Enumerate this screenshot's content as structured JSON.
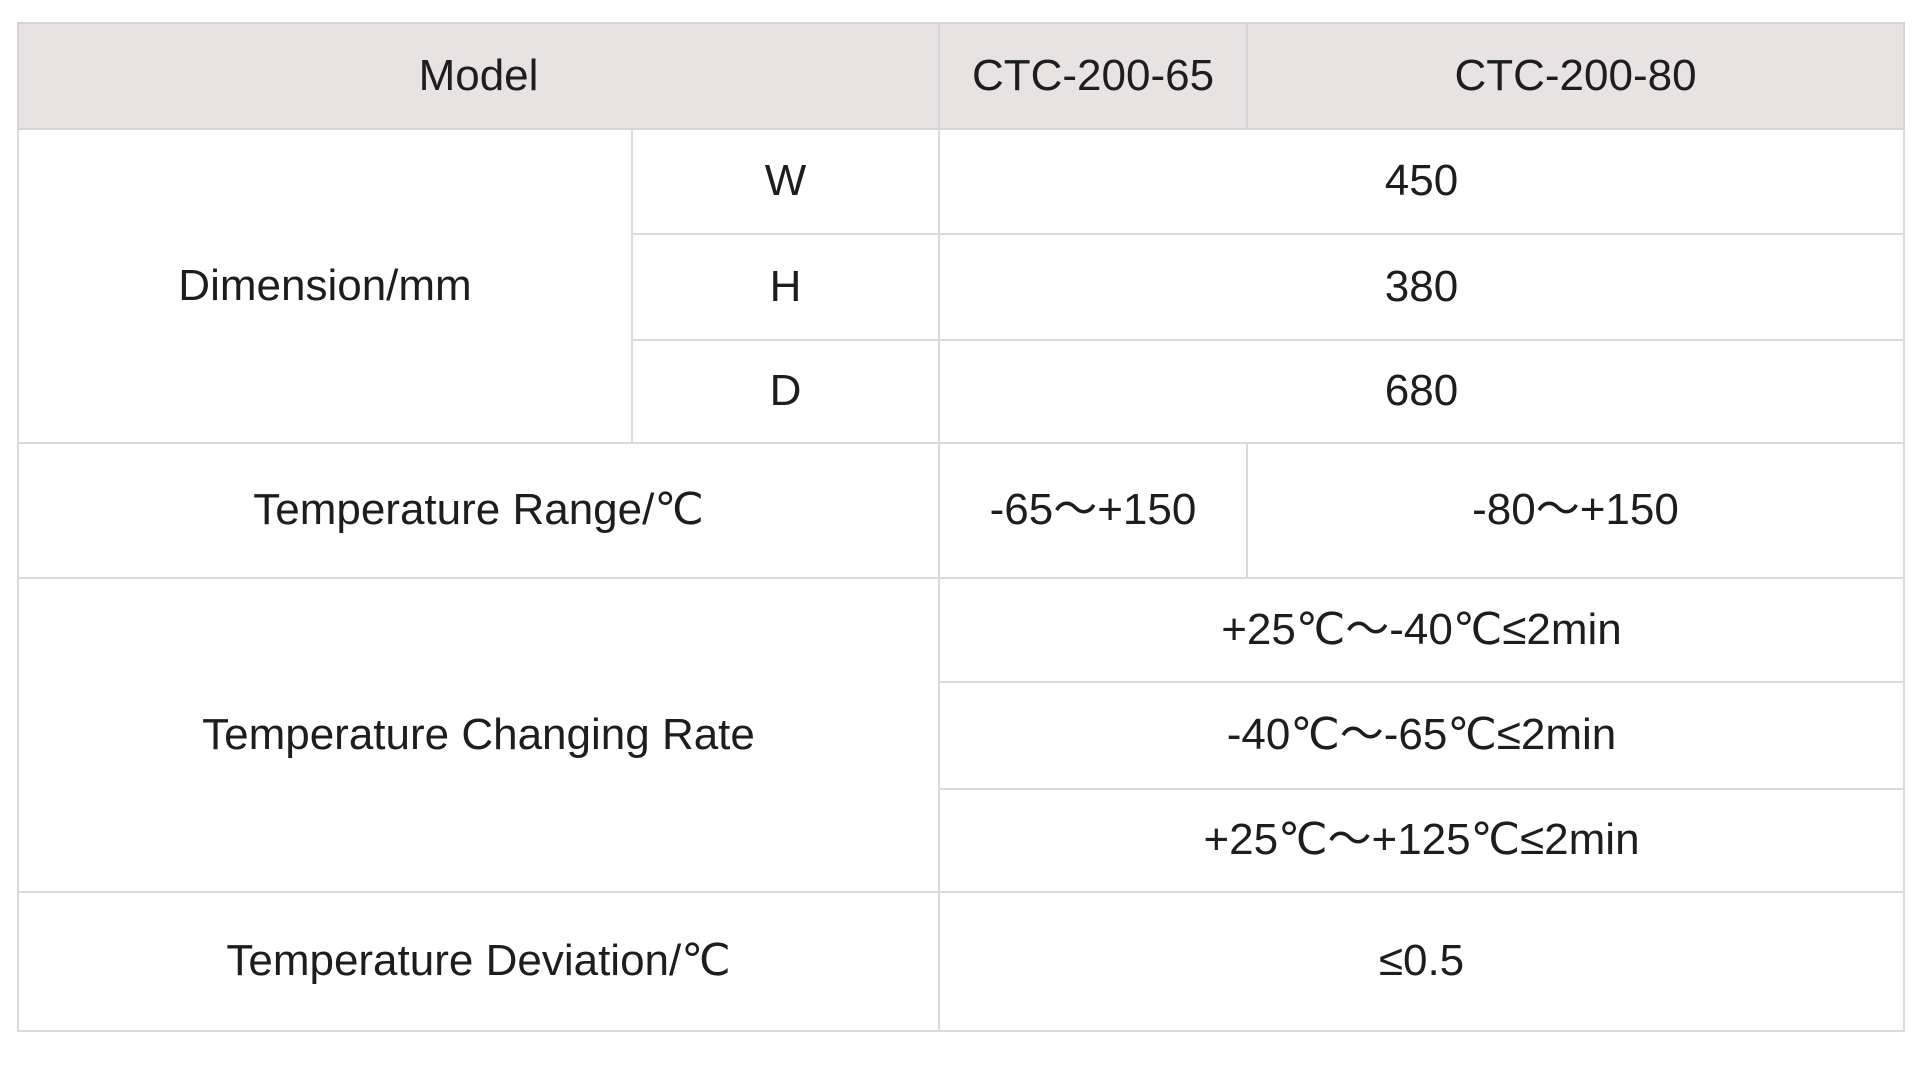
{
  "table": {
    "header": {
      "model_label": "Model",
      "model_1": "CTC-200-65",
      "model_2": "CTC-200-80"
    },
    "dimension": {
      "label": "Dimension/mm",
      "rows": [
        {
          "axis": "W",
          "value": "450"
        },
        {
          "axis": "H",
          "value": "380"
        },
        {
          "axis": "D",
          "value": "680"
        }
      ]
    },
    "temperature_range": {
      "label": "Temperature Range/℃",
      "value_model_1": "-65～+150",
      "value_model_2": "-80～+150"
    },
    "temperature_changing_rate": {
      "label": "Temperature Changing Rate",
      "values": [
        "+25℃～-40℃≤2min",
        "-40℃～-65℃≤2min",
        "+25℃～+125℃≤2min"
      ]
    },
    "temperature_deviation": {
      "label": "Temperature Deviation/℃",
      "value": "≤0.5"
    }
  },
  "colors": {
    "header_background": "#e8e2e2",
    "grid_line": "#d9dade",
    "outer_border": "#c9cbd3",
    "text": "#1d1d1f",
    "page_background": "#ffffff"
  }
}
